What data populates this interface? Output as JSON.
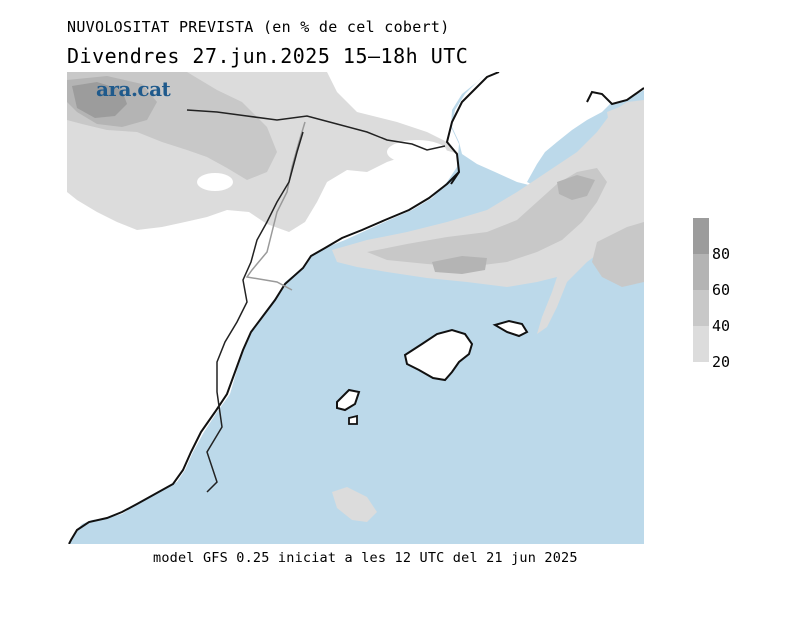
{
  "header": {
    "title": "NUVOLOSITAT PREVISTA (en % de cel cobert)",
    "subtitle": "Divendres  27.jun.2025 15–18h UTC"
  },
  "footer": {
    "text": "model GFS 0.25 iniciat a les 12 UTC del 21 jun 2025"
  },
  "logo": {
    "text": "ara.cat",
    "color": "#1f5a8c"
  },
  "colors": {
    "sea": "#bcd9ea",
    "land": "#ffffff",
    "cloud_20_40": "#dcdcdc",
    "cloud_40_60": "#c8c8c8",
    "cloud_60_80": "#b4b4b4",
    "cloud_80_100": "#9c9c9c",
    "coast": "#111111",
    "border": "#a8a8a8"
  },
  "legend": {
    "unit": "%",
    "levels": [
      {
        "label": "80",
        "color": "#9c9c9c"
      },
      {
        "label": "60",
        "color": "#b4b4b4"
      },
      {
        "label": "40",
        "color": "#c8c8c8"
      },
      {
        "label": "20",
        "color": "#dcdcdc"
      }
    ]
  }
}
